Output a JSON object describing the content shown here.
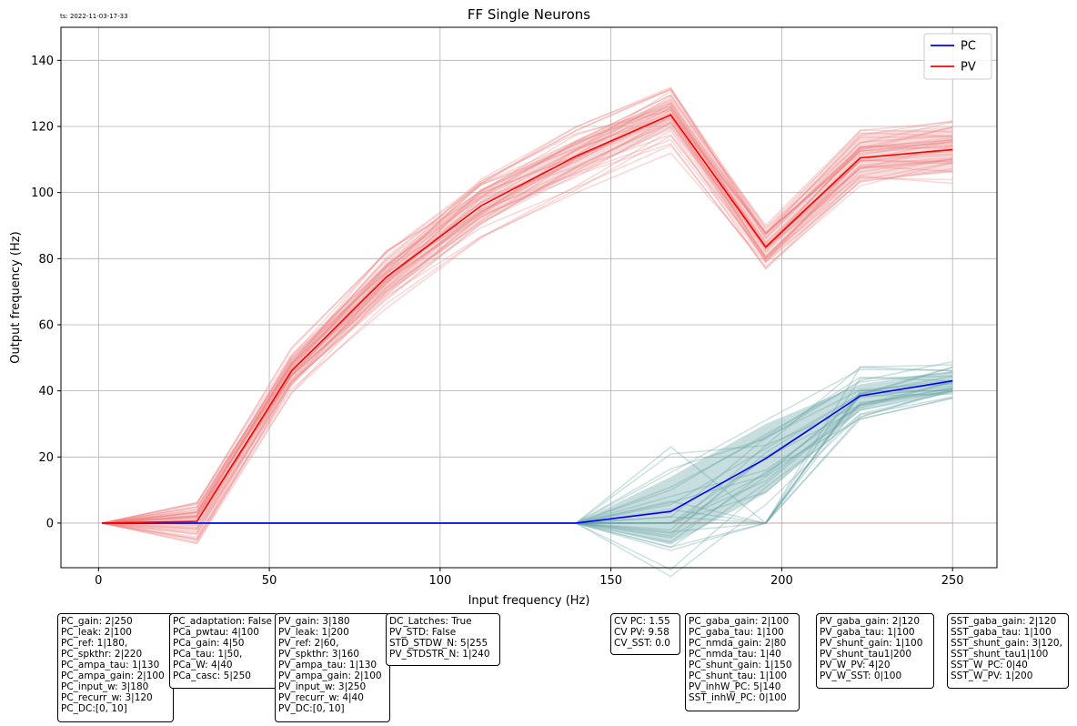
{
  "timestamp": "ts: 2022-11-03-17-33",
  "chart_data": {
    "type": "line",
    "title": "FF Single Neurons",
    "xlabel": "Input frequency (Hz)",
    "ylabel": "Output frequency (Hz)",
    "xlim": [
      -11,
      263
    ],
    "ylim": [
      -13.5,
      150
    ],
    "xticks": [
      0,
      50,
      100,
      150,
      200,
      250
    ],
    "yticks": [
      0,
      20,
      40,
      60,
      80,
      100,
      120,
      140
    ],
    "grid": true,
    "legend": "top-right",
    "x": [
      1,
      28.8,
      56.5,
      84.3,
      112,
      139.8,
      167.5,
      195.3,
      223,
      250
    ],
    "series": [
      {
        "name": "PC",
        "color": "#0000ff",
        "values": [
          0,
          0,
          0,
          0,
          0,
          0,
          3.5,
          19.5,
          38.5,
          43
        ]
      },
      {
        "name": "PV",
        "color": "#ff0000",
        "values": [
          0,
          0.5,
          46,
          74.5,
          96,
          111,
          123.5,
          83.5,
          110.5,
          113
        ]
      }
    ],
    "bands": [
      {
        "series": "PC",
        "color": "#5f9ea0",
        "upper": [
          0,
          0,
          0,
          0,
          0,
          0,
          14,
          30,
          42,
          46
        ],
        "lower": [
          0,
          0,
          0,
          0,
          0,
          0,
          -6.5,
          9,
          34,
          40
        ]
      },
      {
        "series": "PV",
        "color": "#e8a0a0",
        "upper": [
          0,
          2,
          50,
          80,
          101,
          116,
          128,
          88,
          118,
          120
        ],
        "lower": [
          0,
          -2,
          42,
          69,
          91,
          106,
          119,
          79,
          104,
          106
        ]
      }
    ],
    "background_traces": {
      "PV": {
        "color": "#f08080",
        "count": 40,
        "mean": [
          0,
          0.5,
          46,
          74.5,
          96,
          111,
          123.5,
          83.5,
          110.5,
          113
        ],
        "spread": [
          0,
          8,
          7,
          9,
          10,
          11,
          11,
          7,
          10,
          10
        ]
      },
      "PC": {
        "color": "#5f9ea0",
        "count": 30,
        "mean": [
          0,
          0,
          0,
          0,
          0,
          0,
          3.5,
          19.5,
          38.5,
          43
        ],
        "spread": [
          0,
          0,
          0,
          0,
          0,
          0,
          20,
          14,
          9,
          6
        ]
      }
    }
  },
  "info_boxes": [
    {
      "id": "pc-params",
      "text": "PC_gain: 2|250\nPC_leak: 2|100\nPC_ref: 1|180,\nPC_spkthr: 2|220\nPC_ampa_tau: 1|130\nPC_ampa_gain: 2|100\nPC_input_w: 3|180\nPC_recurr_w: 3|120\nPC_DC:[0, 10]"
    },
    {
      "id": "pca-params",
      "text": "PC_adaptation: False\nPCa_pwtau: 4|100\nPCa_gain: 4|50\nPCa_tau: 1|50,\nPCa_W: 4|40\nPCa_casc: 5|250"
    },
    {
      "id": "pv-params",
      "text": "PV_gain: 3|180\nPV_leak: 1|200\nPV_ref: 2|60,\nPV_spkthr: 3|160\nPV_ampa_tau: 1|130\nPV_ampa_gain: 2|100\nPV_input_w: 3|250\nPV_recurr_w: 4|40\nPV_DC:[0, 10]"
    },
    {
      "id": "dc-params",
      "text": "DC_Latches: True\nPV_STD: False\nSTD_STDW_N: 5|255\nPV_STDSTR_N: 1|240"
    },
    {
      "id": "cv-values",
      "text": "CV PC: 1.55\nCV PV: 9.58\nCV_SST: 0.0"
    },
    {
      "id": "pc-gaba-params",
      "text": "PC_gaba_gain: 2|100\nPC_gaba_tau: 1|100\nPC_nmda_gain: 2|80\nPC_nmda_tau: 1|40\nPC_shunt_gain: 1|150\nPC_shunt_tau: 1|100\nPV_inhW_PC: 5|140\nSST_inhW_PC: 0|100"
    },
    {
      "id": "pv-gaba-params",
      "text": "PV_gaba_gain: 2|120\nPV_gaba_tau: 1|100\nPV_shunt_gain: 1|100\nPV_shunt_tau1|200\nPV_W_PV: 4|20\nPV_W_SST: 0|100"
    },
    {
      "id": "sst-gaba-params",
      "text": "SST_gaba_gain: 2|120\nSST_gaba_tau: 1|100\nSST_shunt_gain: 3|120,\nSST_shunt_tau1|100\nSST_W_PC: 0|40\nSST_W_PV: 1|200"
    }
  ]
}
